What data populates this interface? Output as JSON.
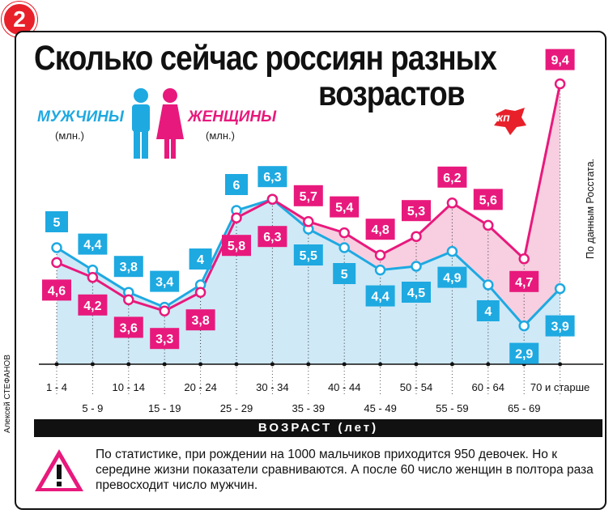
{
  "badge": "2",
  "title_line1": "Сколько сейчас россиян разных",
  "title_line2": "возрастов",
  "legend": {
    "men_label": "МУЖЧИНЫ",
    "men_unit": "(млн.)",
    "women_label": "ЖЕНЩИНЫ",
    "women_unit": "(млн.)"
  },
  "logo_text": "кп",
  "source": "По данным Росстата.",
  "author": "Алексей СТЕФАНОВ",
  "xaxis_title": "ВОЗРАСТ (лет)",
  "note": "По статистике, при рождении на 1000 мальчиков приходится 950 девочек. Но к середине жизни показатели сравниваются. А после 60 число женщин в полтора раза превосходит число мужчин.",
  "colors": {
    "men": "#1ea9e1",
    "women": "#e8197c",
    "men_fill": "#cfe9f7",
    "women_fill": "#f7cfe0"
  },
  "icons": [
    "man-icon",
    "woman-icon",
    "warning-icon"
  ],
  "chart_data": {
    "type": "line",
    "categories": [
      "1 - 4",
      "5 - 9",
      "10 - 14",
      "15 - 19",
      "20 - 24",
      "25 - 29",
      "30 - 34",
      "35 - 39",
      "40 - 44",
      "45 - 49",
      "50 - 54",
      "55 - 59",
      "60 - 64",
      "65 - 69",
      "70 и старше"
    ],
    "series": [
      {
        "name": "МУЖЧИНЫ",
        "values": [
          5,
          4.4,
          3.8,
          3.4,
          4,
          6,
          6.3,
          5.5,
          5,
          4.4,
          4.5,
          4.9,
          4,
          2.9,
          3.9
        ],
        "labels": [
          "5",
          "4,4",
          "3,8",
          "3,4",
          "4",
          "6",
          "6,3",
          "5,5",
          "5",
          "4,4",
          "4,5",
          "4,9",
          "4",
          "2,9",
          "3,9"
        ]
      },
      {
        "name": "ЖЕНЩИНЫ",
        "values": [
          4.6,
          4.2,
          3.6,
          3.3,
          3.8,
          5.8,
          6.3,
          5.7,
          5.4,
          4.8,
          5.3,
          6.2,
          5.6,
          4.7,
          9.4
        ],
        "labels": [
          "4,6",
          "4,2",
          "3,6",
          "3,3",
          "3,8",
          "5,8",
          "6,3",
          "5,7",
          "5,4",
          "4,8",
          "5,3",
          "6,2",
          "5,6",
          "4,7",
          "9,4"
        ]
      }
    ],
    "xlabel": "ВОЗРАСТ (лет)",
    "ylabel": "(млн.)",
    "grid": false
  }
}
